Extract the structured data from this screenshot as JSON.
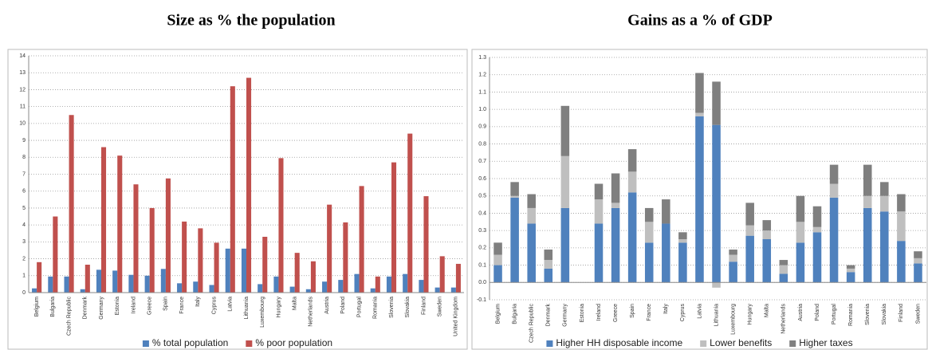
{
  "chart_data": [
    {
      "type": "bar",
      "title": "Size as % the population",
      "categories": [
        "Belgium",
        "Bulgaria",
        "Czech Republic",
        "Denmark",
        "Germany",
        "Estonia",
        "Ireland",
        "Greece",
        "Spain",
        "France",
        "Italy",
        "Cyprus",
        "Latvia",
        "Lithuania",
        "Luxembourg",
        "Hungary",
        "Malta",
        "Netherlands",
        "Austria",
        "Poland",
        "Portugal",
        "Romania",
        "Slovenia",
        "Slovakia",
        "Finland",
        "Sweden",
        "United Kingdom"
      ],
      "series": [
        {
          "name": "% total population",
          "color": "#4f81bd",
          "values": [
            0.25,
            0.95,
            0.95,
            0.2,
            1.35,
            1.3,
            1.05,
            1.0,
            1.4,
            0.55,
            0.65,
            0.45,
            2.6,
            2.6,
            0.5,
            0.95,
            0.35,
            0.2,
            0.65,
            0.75,
            1.1,
            0.25,
            0.95,
            1.1,
            0.75,
            0.3,
            0.3
          ]
        },
        {
          "name": "% poor population",
          "color": "#c0504d",
          "values": [
            1.8,
            4.5,
            10.5,
            1.65,
            8.6,
            8.1,
            6.4,
            5.0,
            6.75,
            4.2,
            3.8,
            2.95,
            12.2,
            12.7,
            3.3,
            7.95,
            2.35,
            1.85,
            5.2,
            4.15,
            6.3,
            0.95,
            7.7,
            9.4,
            5.7,
            2.15,
            1.7
          ]
        }
      ],
      "ylim": [
        0,
        14
      ],
      "yticks": [
        0,
        1,
        2,
        3,
        4,
        5,
        6,
        7,
        8,
        9,
        10,
        11,
        12,
        13,
        14
      ],
      "grid": true,
      "stacked": false
    },
    {
      "type": "bar",
      "title": "Gains as a % of GDP",
      "categories": [
        "Belgium",
        "Bulgaria",
        "Czech Republic",
        "Denmark",
        "Germany",
        "Estonia",
        "Ireland",
        "Greece",
        "Spain",
        "France",
        "Italy",
        "Cyprus",
        "Latvia",
        "Lithuania",
        "Luxembourg",
        "Hungary",
        "Malta",
        "Netherlands",
        "Austria",
        "Poland",
        "Portugal",
        "Romania",
        "Slovenia",
        "Slovakia",
        "Finland",
        "Sweden"
      ],
      "series": [
        {
          "name": "Higher HH disposable income",
          "color": "#4f81bd",
          "values": [
            0.1,
            0.49,
            0.34,
            0.08,
            0.43,
            0,
            0.34,
            0.43,
            0.52,
            0.23,
            0.34,
            0.23,
            0.96,
            0.91,
            0.12,
            0.27,
            0.25,
            0.05,
            0.23,
            0.29,
            0.49,
            0.06,
            0.43,
            0.41,
            0.24,
            0.11
          ]
        },
        {
          "name": "Lower benefits",
          "color": "#bfbfbf",
          "values": [
            0.06,
            0.01,
            0.09,
            0.05,
            0.3,
            0,
            0.14,
            0.03,
            0.12,
            0.12,
            0,
            0.02,
            0.02,
            -0.03,
            0.04,
            0.06,
            0.05,
            0.05,
            0.12,
            0.03,
            0.08,
            0.02,
            0.07,
            0.09,
            0.17,
            0.03
          ]
        },
        {
          "name": "Higher taxes",
          "color": "#7f7f7f",
          "values": [
            0.07,
            0.08,
            0.08,
            0.06,
            0.29,
            0,
            0.09,
            0.17,
            0.13,
            0.08,
            0.14,
            0.04,
            0.23,
            0.25,
            0.03,
            0.13,
            0.06,
            0.03,
            0.15,
            0.12,
            0.11,
            0.02,
            0.18,
            0.08,
            0.1,
            0.04
          ]
        }
      ],
      "ylim": [
        -0.1,
        1.3
      ],
      "yticks": [
        -0.1,
        {
          "value": 0,
          "label": "0.0"
        },
        0.1,
        0.2,
        0.3,
        0.4,
        0.5,
        0.6,
        0.7,
        0.8,
        0.9,
        {
          "value": 1,
          "label": "1.0"
        },
        1.1,
        1.2,
        1.3
      ],
      "grid": true,
      "stacked": true
    }
  ]
}
